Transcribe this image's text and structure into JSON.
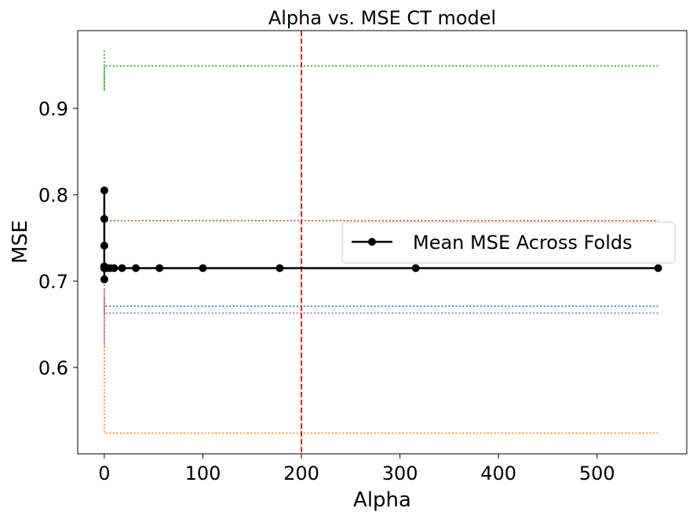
{
  "chart_data": {
    "type": "line",
    "title": "Alpha vs. MSE CT model",
    "xlabel": "Alpha",
    "ylabel": "MSE",
    "xlim": [
      -27,
      591
    ],
    "ylim": [
      0.5,
      0.99
    ],
    "xticks": [
      0,
      100,
      200,
      300,
      400,
      500
    ],
    "xtick_labels": [
      "0",
      "100",
      "200",
      "300",
      "400",
      "500"
    ],
    "yticks": [
      0.6,
      0.7,
      0.8,
      0.9
    ],
    "ytick_labels": [
      "0.6",
      "0.7",
      "0.8",
      "0.9"
    ],
    "grid": false,
    "legend": {
      "placement": "center-right",
      "entries": [
        "Mean MSE Across Folds"
      ]
    },
    "mean_series": {
      "name": "Mean MSE Across Folds",
      "color": "#000000",
      "x": [
        0,
        0,
        0,
        0,
        0,
        0,
        0,
        1,
        3,
        6,
        10,
        18,
        32,
        56,
        100,
        178,
        316,
        562
      ],
      "y": [
        0.805,
        0.772,
        0.741,
        0.717,
        0.715,
        0.702,
        0.715,
        0.715,
        0.715,
        0.715,
        0.715,
        0.715,
        0.715,
        0.715,
        0.715,
        0.715,
        0.715,
        0.715
      ]
    },
    "fold_series": [
      {
        "color": "#2ca02c",
        "x": [
          0,
          0,
          0,
          562
        ],
        "y": [
          0.967,
          0.92,
          0.949,
          0.949
        ]
      },
      {
        "color": "#d62728",
        "x": [
          0,
          0,
          0,
          562
        ],
        "y": [
          0.78,
          0.76,
          0.77,
          0.77
        ]
      },
      {
        "color": "#1f77b4",
        "x": [
          0,
          0,
          0,
          562
        ],
        "y": [
          0.68,
          0.66,
          0.671,
          0.671
        ]
      },
      {
        "color": "#9467bd",
        "x": [
          0,
          0,
          0,
          562
        ],
        "y": [
          0.7,
          0.625,
          0.663,
          0.663
        ]
      },
      {
        "color": "#ff7f0e",
        "x": [
          0,
          0,
          0,
          562
        ],
        "y": [
          0.69,
          0.524,
          0.524,
          0.524
        ]
      }
    ],
    "vline": {
      "x": 200,
      "color": "#ff0000",
      "style": "dashed"
    }
  }
}
